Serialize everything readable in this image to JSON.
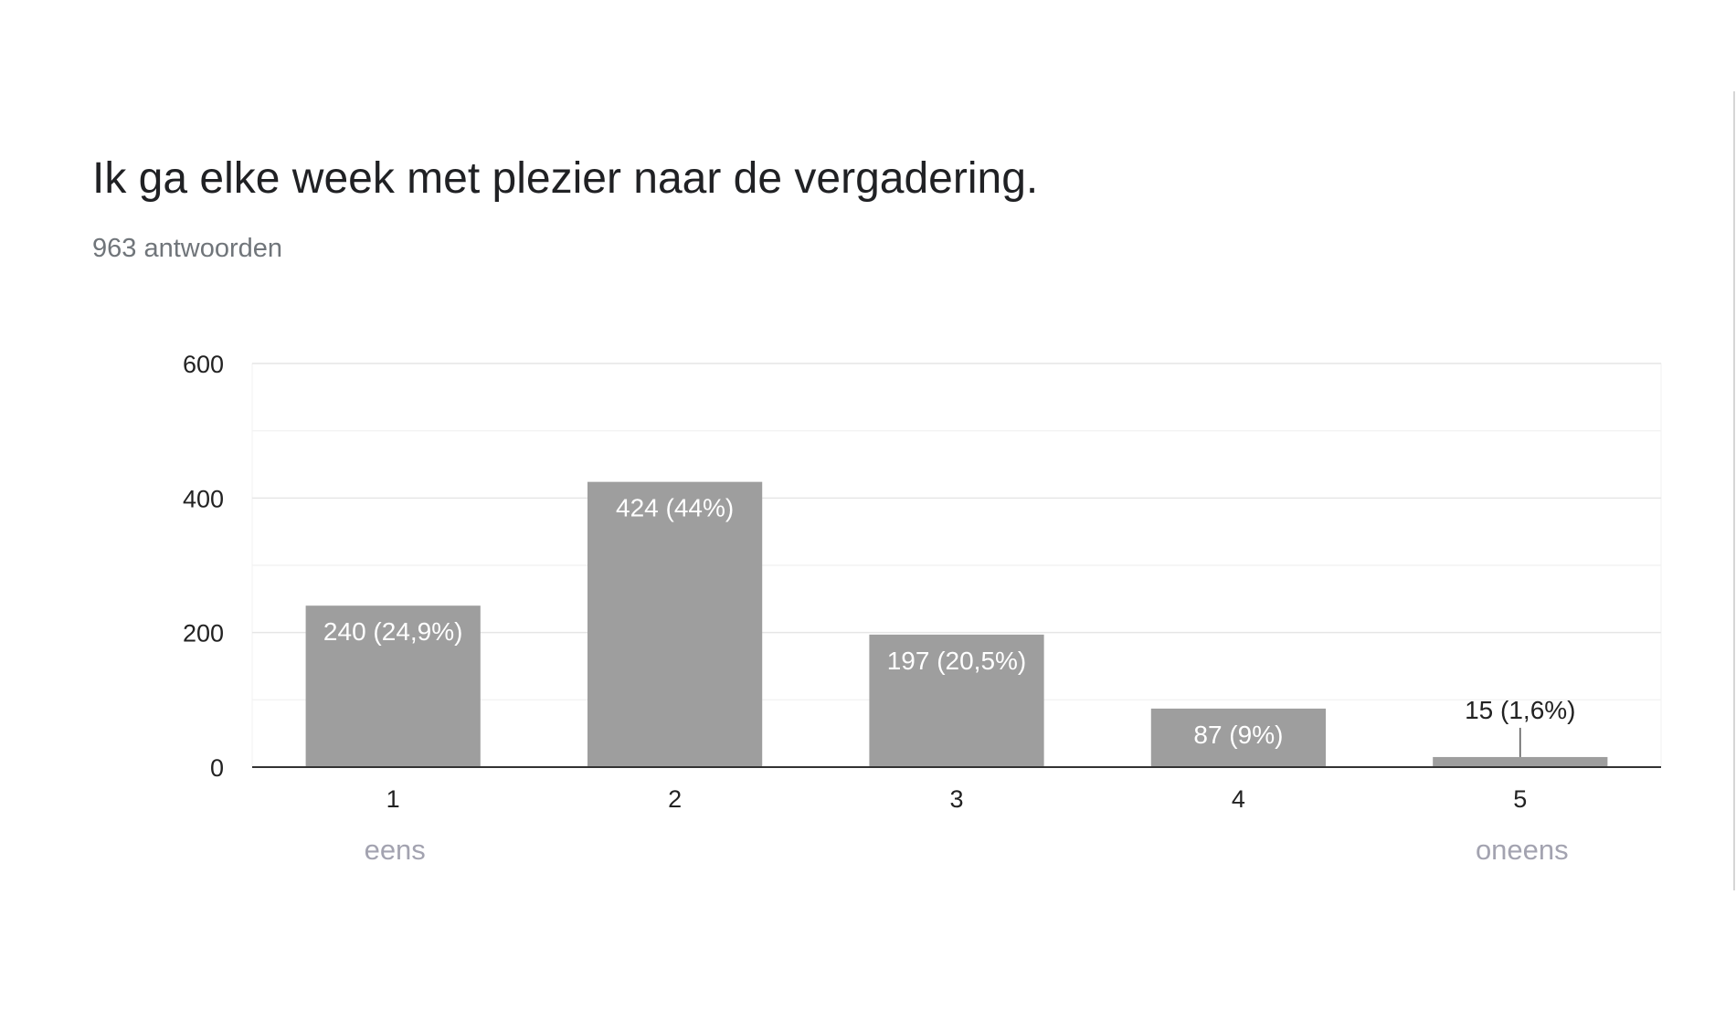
{
  "question": {
    "title": "Ik ga elke week met plezier naar de vergadering.",
    "response_count": "963 antwoorden"
  },
  "colors": {
    "bar": "#9e9e9e",
    "gridline": "#ececec",
    "axis": "#333333",
    "tick_text": "#222222",
    "inside_label": "#ffffff",
    "scale_label": "#a3a3b0"
  },
  "chart_data": {
    "type": "bar",
    "title": "Ik ga elke week met plezier naar de vergadering.",
    "subtitle": "963 antwoorden",
    "categories": [
      "1",
      "2",
      "3",
      "4",
      "5"
    ],
    "values": [
      240,
      424,
      197,
      87,
      15
    ],
    "data_labels": [
      "240 (24,9%)",
      "424 (44%)",
      "197 (20,5%)",
      "87 (9%)",
      "15 (1,6%)"
    ],
    "ylim": [
      0,
      600
    ],
    "yticks": [
      0,
      200,
      400,
      600
    ],
    "grid": true,
    "scale_labels": {
      "low": "eens",
      "high": "oneens"
    }
  }
}
